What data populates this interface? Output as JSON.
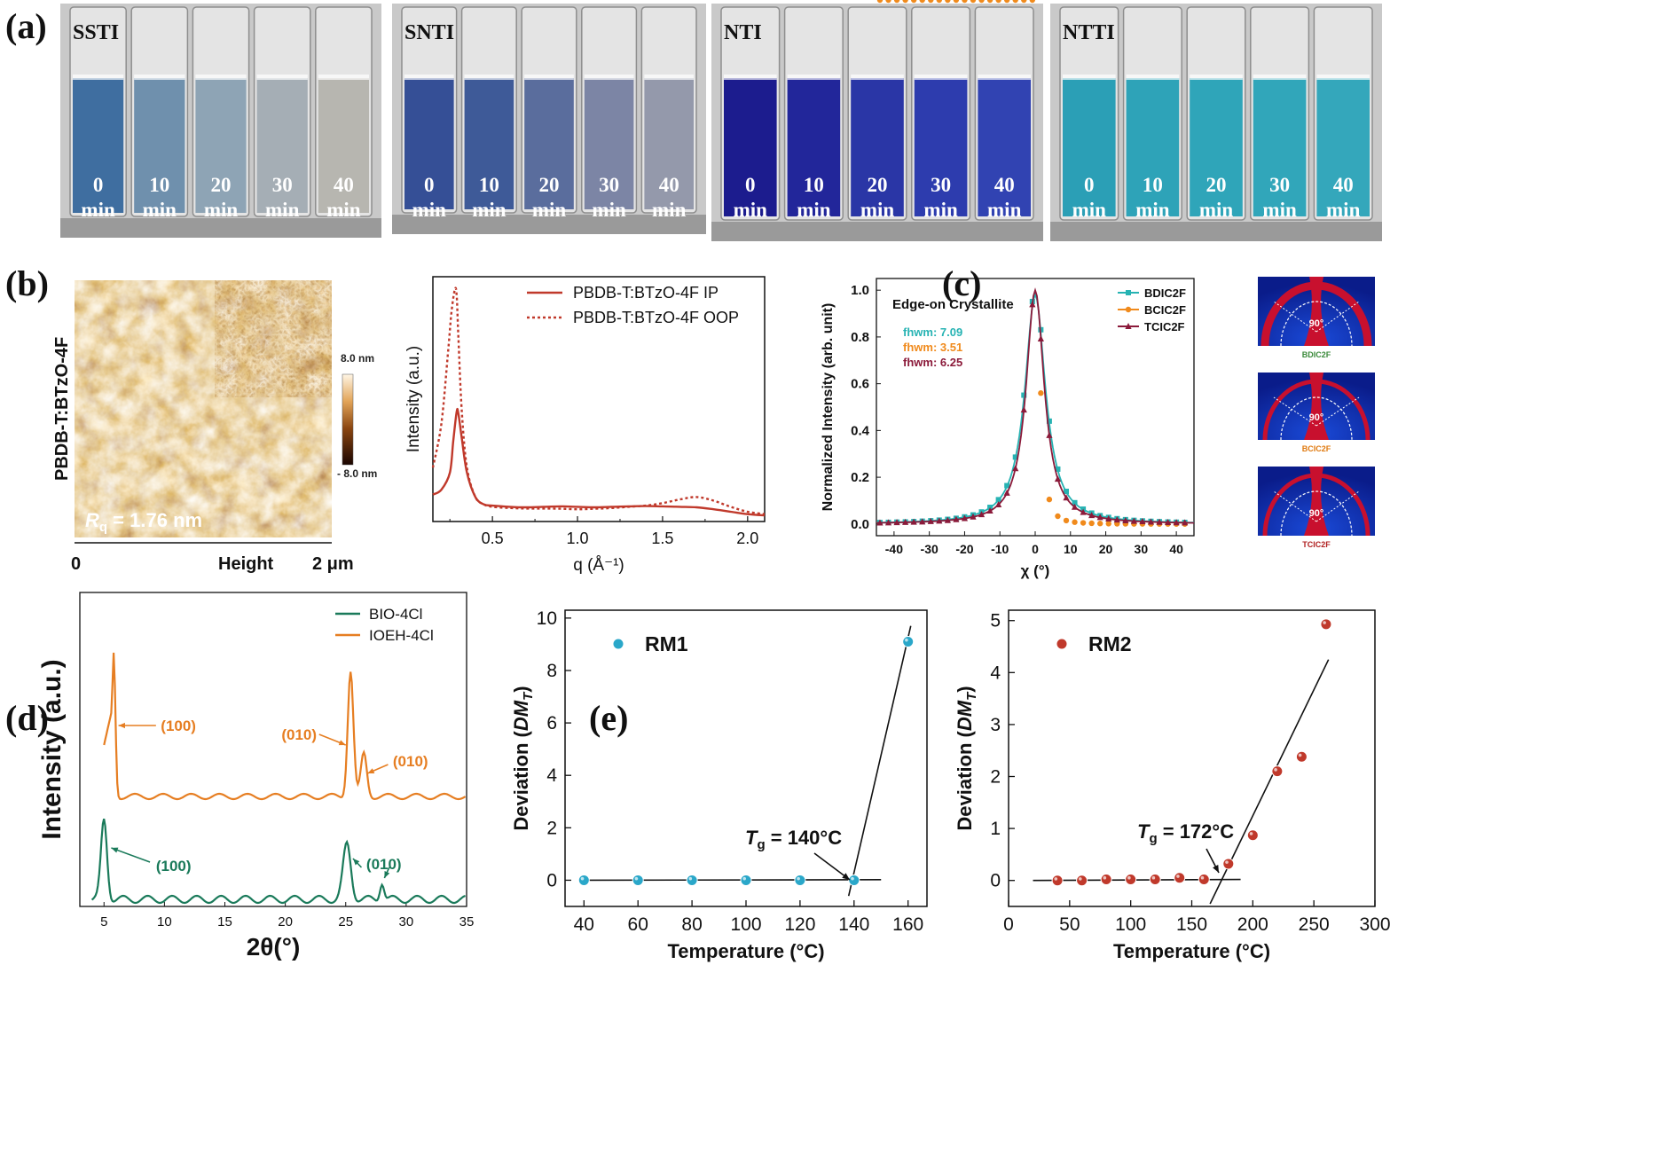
{
  "panels": {
    "a": "(a)",
    "b": "(b)",
    "c": "(c)",
    "d": "(d)",
    "e": "(e)"
  },
  "panel_a": {
    "groups": [
      {
        "name": "SSTI",
        "liquid": [
          "#3f6ea0",
          "#6f90ad",
          "#8ea4b5",
          "#a5aeb5",
          "#b7b6b0"
        ]
      },
      {
        "name": "SNTI",
        "liquid": [
          "#354f96",
          "#3e5a98",
          "#5a6d9d",
          "#7c85a5",
          "#9499ab"
        ]
      },
      {
        "name": "NTI",
        "liquid": [
          "#1c1c8e",
          "#22269a",
          "#2a36a6",
          "#2d3cae",
          "#3143b2"
        ]
      },
      {
        "name": "NTTI",
        "liquid": [
          "#2b9fb6",
          "#2ea3b8",
          "#2fa5b9",
          "#31a6ba",
          "#34a7bb"
        ]
      }
    ],
    "times": [
      {
        "num": "0",
        "unit": "min"
      },
      {
        "num": "10",
        "unit": "min"
      },
      {
        "num": "20",
        "unit": "min"
      },
      {
        "num": "30",
        "unit": "min"
      },
      {
        "num": "40",
        "unit": "min"
      }
    ]
  },
  "panel_b_afm": {
    "ylabel": "PBDB-T:BTzO-4F",
    "rq_symbol": "R",
    "rq_sub": "q",
    "rq_value": " = 1.76 nm",
    "x_left": "0",
    "x_mid": "Height",
    "x_right": "2 μm",
    "scale_top": "8.0 nm",
    "scale_bottom": "- 8.0 nm",
    "colors": {
      "dark": "#3a1505",
      "mid": "#a25a12",
      "light": "#f0c78a"
    }
  },
  "chart_data": [
    {
      "id": "b-giwaxs",
      "type": "line",
      "xlabel": "q (Å⁻¹)",
      "ylabel": "Intensity (a.u.)",
      "xlim": [
        0.15,
        2.1
      ],
      "ylim": [
        0,
        1
      ],
      "xticks": [
        "0.5",
        "1.0",
        "1.5",
        "2.0"
      ],
      "series": [
        {
          "name": "PBDB-T:BTzO-4F IP",
          "style": "solid",
          "color": "#c0392b",
          "x": [
            0.15,
            0.2,
            0.25,
            0.27,
            0.29,
            0.3,
            0.32,
            0.35,
            0.4,
            0.45,
            0.5,
            0.6,
            0.7,
            0.8,
            0.9,
            1.0,
            1.1,
            1.2,
            1.3,
            1.4,
            1.5,
            1.6,
            1.7,
            1.8,
            1.9,
            2.0,
            2.1
          ],
          "y": [
            0.11,
            0.13,
            0.2,
            0.33,
            0.45,
            0.44,
            0.34,
            0.2,
            0.1,
            0.07,
            0.065,
            0.06,
            0.058,
            0.06,
            0.062,
            0.06,
            0.058,
            0.06,
            0.062,
            0.063,
            0.062,
            0.06,
            0.058,
            0.05,
            0.04,
            0.03,
            0.025
          ]
        },
        {
          "name": "PBDB-T:BTzO-4F OOP",
          "style": "dotted",
          "color": "#c0392b",
          "x": [
            0.15,
            0.2,
            0.24,
            0.26,
            0.28,
            0.29,
            0.3,
            0.32,
            0.35,
            0.4,
            0.45,
            0.5,
            0.6,
            0.7,
            0.8,
            0.9,
            1.0,
            1.1,
            1.2,
            1.3,
            1.4,
            1.5,
            1.6,
            1.7,
            1.8,
            1.9,
            2.0,
            2.1
          ],
          "y": [
            0.22,
            0.4,
            0.7,
            0.86,
            0.95,
            0.92,
            0.75,
            0.45,
            0.22,
            0.1,
            0.07,
            0.06,
            0.055,
            0.053,
            0.053,
            0.052,
            0.05,
            0.052,
            0.055,
            0.06,
            0.065,
            0.075,
            0.09,
            0.1,
            0.085,
            0.06,
            0.04,
            0.03
          ]
        }
      ]
    },
    {
      "id": "c-pole",
      "type": "line",
      "annotation": "Edge-on Crystallite",
      "xlabel": "χ (°)",
      "ylabel": "Normalized Intensity (arb. unit)",
      "xlim": [
        -45,
        45
      ],
      "ylim": [
        -0.05,
        1.05
      ],
      "xticks": [
        -40,
        -30,
        -20,
        -10,
        0,
        10,
        20,
        30,
        40
      ],
      "yticks": [
        0.0,
        0.2,
        0.4,
        0.6,
        0.8,
        1.0
      ],
      "series": [
        {
          "name": "BDIC2F",
          "color": "#27b3b3",
          "marker": "square",
          "fhwm": "fhwm: 7.09"
        },
        {
          "name": "BCIC2F",
          "color": "#f08a1c",
          "marker": "circle",
          "fhwm": "fhwm: 3.51"
        },
        {
          "name": "TCIC2F",
          "color": "#8b1a3a",
          "marker": "triangle",
          "fhwm": "fhwm: 6.25"
        }
      ],
      "insets": [
        {
          "label": "BDIC2F",
          "angle": "90°",
          "label_color": "#3a8a3a"
        },
        {
          "label": "BCIC2F",
          "angle": "90°",
          "label_color": "#e07a10"
        },
        {
          "label": "TCIC2F",
          "angle": "90°",
          "label_color": "#b02020"
        }
      ]
    },
    {
      "id": "d-xrd",
      "type": "line",
      "xlabel": "2θ(°)",
      "ylabel": "Intensity (a.u.)",
      "xlim": [
        3,
        35
      ],
      "xticks": [
        5,
        10,
        15,
        20,
        25,
        30,
        35
      ],
      "series": [
        {
          "name": "BIO-4Cl",
          "color": "#1a7a5a",
          "peaks": [
            {
              "x": 5.0,
              "label": "(100)"
            },
            {
              "x": 28.0,
              "label": "(010)"
            }
          ]
        },
        {
          "name": "IOEH-4Cl",
          "color": "#e67e22",
          "peaks": [
            {
              "x": 5.8,
              "label": "(100)"
            },
            {
              "x": 25.4,
              "label": "(010)"
            },
            {
              "x": 26.5,
              "label": "(010)"
            }
          ]
        }
      ]
    },
    {
      "id": "e-rm1",
      "type": "scatter",
      "legend": "RM1",
      "color": "#2aa7c9",
      "xlabel": "Temperature (°C)",
      "ylabel_main": "Deviation (",
      "ylabel_sym": "DM",
      "ylabel_sub": "T",
      "ylabel_end": ")",
      "xlim": [
        33,
        167
      ],
      "ylim": [
        -1,
        10.3
      ],
      "xticks": [
        40,
        60,
        80,
        100,
        120,
        140,
        160
      ],
      "yticks": [
        0,
        2,
        4,
        6,
        8,
        10
      ],
      "x": [
        40,
        60,
        80,
        100,
        120,
        140,
        160
      ],
      "y": [
        0,
        0,
        0,
        0,
        0,
        0,
        9.1
      ],
      "tg_sym": "T",
      "tg_sub": "g",
      "tg_value": " = 140°C"
    },
    {
      "id": "e-rm2",
      "type": "scatter",
      "legend": "RM2",
      "color": "#c0392b",
      "xlabel": "Temperature (°C)",
      "ylabel_main": "Deviation (",
      "ylabel_sym": "DM",
      "ylabel_sub": "T",
      "ylabel_end": ")",
      "xlim": [
        0,
        300
      ],
      "ylim": [
        -0.5,
        5.2
      ],
      "xticks": [
        0,
        50,
        100,
        150,
        200,
        250,
        300
      ],
      "yticks": [
        0,
        1,
        2,
        3,
        4,
        5
      ],
      "x": [
        40,
        60,
        80,
        100,
        120,
        140,
        160,
        180,
        200,
        220,
        240,
        260
      ],
      "y": [
        0,
        0,
        0.02,
        0.02,
        0.02,
        0.05,
        0.02,
        0.32,
        0.87,
        2.1,
        2.38,
        4.93
      ],
      "tg_sym": "T",
      "tg_sub": "g",
      "tg_value": " = 172°C"
    }
  ]
}
